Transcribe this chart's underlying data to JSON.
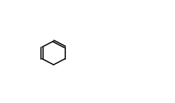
{
  "bg_color": "#ffffff",
  "line_color": "#000000",
  "line_width": 1.2,
  "font_size": 7,
  "fig_width": 2.52,
  "fig_height": 1.48,
  "dpi": 100
}
